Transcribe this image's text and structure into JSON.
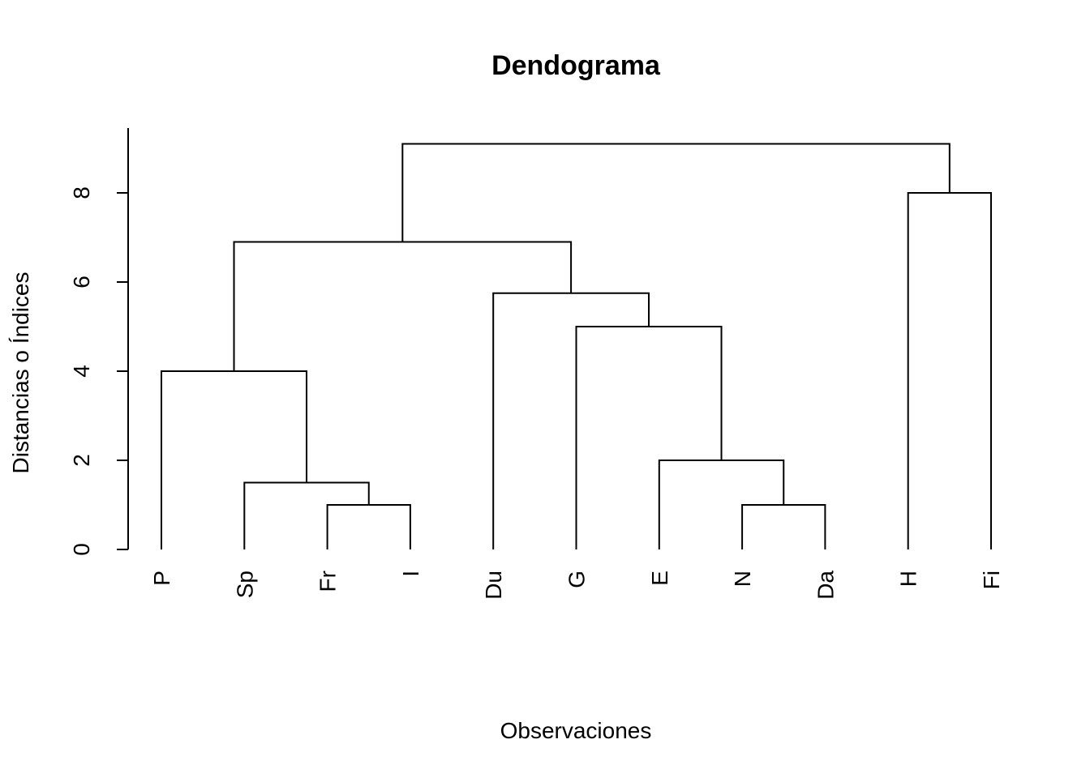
{
  "chart_data": {
    "type": "dendrogram",
    "title": "Dendograma",
    "xlabel": "Observaciones",
    "ylabel": "Distancias o Índices",
    "ylim": [
      0,
      9.5
    ],
    "yticks": [
      0,
      2,
      4,
      6,
      8
    ],
    "grid": false,
    "leaves": [
      "P",
      "Sp",
      "Fr",
      "I",
      "Du",
      "G",
      "E",
      "N",
      "Da",
      "H",
      "Fi"
    ],
    "merges": [
      {
        "left": "Fr",
        "right": "I",
        "height": 1.0
      },
      {
        "left": "N",
        "right": "Da",
        "height": 1.0
      },
      {
        "left": "Sp",
        "right": "Fr+I",
        "height": 1.5
      },
      {
        "left": "E",
        "right": "N+Da",
        "height": 2.0
      },
      {
        "left": "P",
        "right": "Sp+Fr+I",
        "height": 4.0
      },
      {
        "left": "G",
        "right": "E+N+Da",
        "height": 5.0
      },
      {
        "left": "Du",
        "right": "G+E+N+Da",
        "height": 5.75
      },
      {
        "left": "P+Sp+Fr+I",
        "right": "Du+G+E+N+Da",
        "height": 6.9
      },
      {
        "left": "H",
        "right": "Fi",
        "height": 8.0
      },
      {
        "left": "P+Sp+Fr+I+Du+G+E+N+Da",
        "right": "H+Fi",
        "height": 9.1
      }
    ]
  }
}
